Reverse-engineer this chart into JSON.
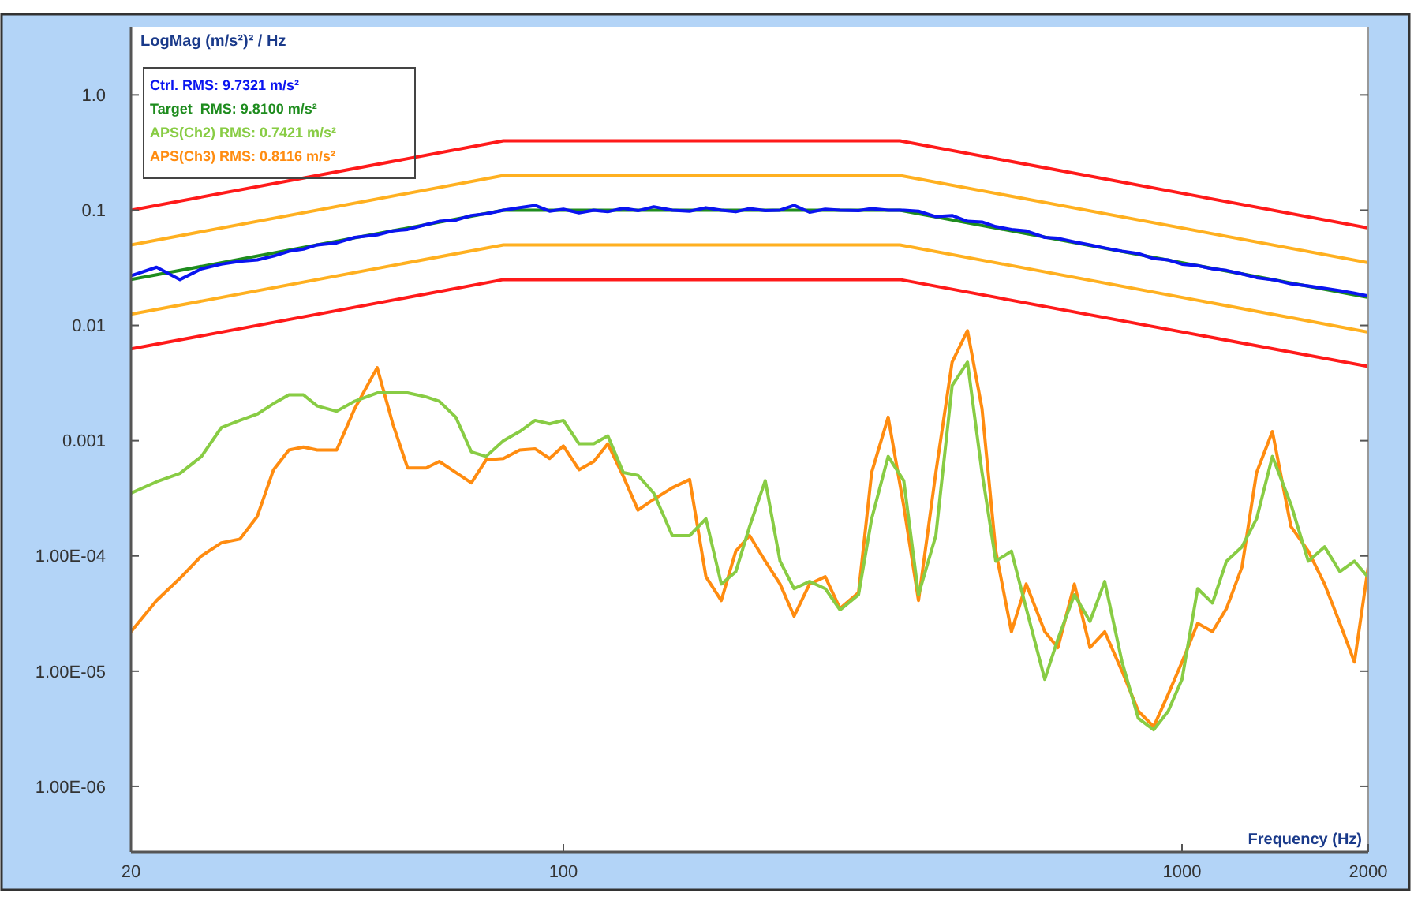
{
  "chart_data": {
    "type": "line",
    "ylabel": "LogMag (m/s²)² / Hz",
    "xlabel": "Frequency (Hz)",
    "log": "xy",
    "xlim": [
      20,
      2000
    ],
    "ylim": [
      2.7e-07,
      3.9
    ],
    "xticks": [
      20,
      100,
      1000,
      2000
    ],
    "yticks": [
      {
        "value": 1,
        "label": "1.0"
      },
      0.1,
      0.01,
      0.001,
      {
        "value": 0.0001,
        "label": "1.00E-04"
      },
      {
        "value": 1e-05,
        "label": "1.00E-05"
      },
      {
        "value": 1e-06,
        "label": "1.00E-06"
      }
    ],
    "grid": false,
    "legend": "top left",
    "marker": "none",
    "line_style": "solid",
    "x": [
      20,
      22,
      24,
      26,
      28,
      30,
      32,
      34,
      36,
      38,
      40,
      43,
      46,
      50,
      53,
      56,
      60,
      63,
      67,
      71,
      75,
      80,
      85,
      90,
      95,
      100,
      106,
      112,
      118,
      125,
      132,
      140,
      150,
      160,
      170,
      180,
      190,
      200,
      212,
      224,
      236,
      250,
      265,
      280,
      300,
      315,
      335,
      355,
      375,
      400,
      425,
      450,
      475,
      500,
      530,
      560,
      600,
      630,
      670,
      710,
      750,
      800,
      850,
      900,
      950,
      1000,
      1060,
      1120,
      1180,
      1250,
      1320,
      1400,
      1500,
      1600,
      1700,
      1800,
      1900,
      2000
    ],
    "series": [
      {
        "name": "Ctrl. RMS: 9.7321 m/s²",
        "color": "#0a14f0",
        "values": [
          0.027,
          0.032,
          0.025,
          0.031,
          0.034,
          0.036,
          0.037,
          0.04,
          0.044,
          0.046,
          0.05,
          0.052,
          0.058,
          0.061,
          0.066,
          0.068,
          0.075,
          0.08,
          0.082,
          0.09,
          0.093,
          0.1,
          0.105,
          0.11,
          0.098,
          0.102,
          0.095,
          0.1,
          0.097,
          0.104,
          0.099,
          0.107,
          0.1,
          0.098,
          0.105,
          0.1,
          0.097,
          0.103,
          0.099,
          0.1,
          0.11,
          0.096,
          0.102,
          0.1,
          0.099,
          0.103,
          0.1,
          0.1,
          0.098,
          0.088,
          0.09,
          0.08,
          0.079,
          0.072,
          0.068,
          0.066,
          0.058,
          0.057,
          0.053,
          0.05,
          0.047,
          0.044,
          0.042,
          0.038,
          0.037,
          0.034,
          0.033,
          0.031,
          0.03,
          0.028,
          0.026,
          0.025,
          0.023,
          0.022,
          0.021,
          0.02,
          0.019,
          0.018
        ]
      },
      {
        "name": "Target  RMS: 9.8100 m/s²",
        "x": [
          20,
          80,
          350,
          2000
        ],
        "color": "#1e8c1e",
        "values": [
          0.025,
          0.1,
          0.1,
          0.0175
        ]
      },
      {
        "x": [
          20,
          80,
          350,
          2000
        ],
        "color": "#ff1a1a",
        "values": [
          0.1,
          0.4,
          0.4,
          0.07
        ]
      },
      {
        "x": [
          20,
          80,
          350,
          2000
        ],
        "color": "#ffb020",
        "values": [
          0.05,
          0.2,
          0.2,
          0.035
        ]
      },
      {
        "x": [
          20,
          80,
          350,
          2000
        ],
        "color": "#ffb020",
        "values": [
          0.0125,
          0.05,
          0.05,
          0.00875
        ]
      },
      {
        "x": [
          20,
          80,
          350,
          2000
        ],
        "color": "#ff1a1a",
        "values": [
          0.00625,
          0.025,
          0.025,
          0.0044
        ]
      },
      {
        "name": "APS(Ch2) RMS: 0.7421 m/s²",
        "color": "#88cc44",
        "values": [
          0.00035,
          0.00044,
          0.00052,
          0.00073,
          0.0013,
          0.0015,
          0.0017,
          0.0021,
          0.0025,
          0.0025,
          0.002,
          0.0018,
          0.0022,
          0.0026,
          0.0026,
          0.0026,
          0.0024,
          0.0022,
          0.0016,
          0.0008,
          0.00073,
          0.001,
          0.0012,
          0.0015,
          0.0014,
          0.0015,
          0.00094,
          0.00094,
          0.0011,
          0.00053,
          0.0005,
          0.00035,
          0.00015,
          0.00015,
          0.00021,
          5.7e-05,
          7.3e-05,
          0.00018,
          0.00045,
          9e-05,
          5.2e-05,
          6e-05,
          5.2e-05,
          3.4e-05,
          4.6e-05,
          0.00021,
          0.00073,
          0.00045,
          4.6e-05,
          0.00015,
          0.003,
          0.0048,
          0.00053,
          9e-05,
          0.00011,
          3.5e-05,
          8.5e-06,
          1.9e-05,
          4.6e-05,
          2.7e-05,
          6e-05,
          1.2e-05,
          3.9e-06,
          3.1e-06,
          4.5e-06,
          8.5e-06,
          5.2e-05,
          3.9e-05,
          9e-05,
          0.00012,
          0.00021,
          0.00073,
          0.00028,
          9e-05,
          0.00012,
          7.3e-05,
          9e-05,
          6.5e-05
        ]
      },
      {
        "name": "APS(Ch3) RMS: 0.8116 m/s²",
        "color": "#ff8c10",
        "values": [
          2.2e-05,
          4.1e-05,
          6.4e-05,
          0.0001,
          0.00013,
          0.00014,
          0.00022,
          0.00056,
          0.00083,
          0.00088,
          0.00083,
          0.00083,
          0.0019,
          0.0043,
          0.0014,
          0.00058,
          0.00058,
          0.00066,
          0.00053,
          0.00043,
          0.00068,
          0.0007,
          0.00083,
          0.00085,
          0.0007,
          0.0009,
          0.00056,
          0.00066,
          0.00094,
          0.00049,
          0.00025,
          0.00031,
          0.00039,
          0.00046,
          6.6e-05,
          4.1e-05,
          0.00011,
          0.00015,
          9e-05,
          5.7e-05,
          3e-05,
          5.7e-05,
          6.6e-05,
          3.5e-05,
          4.8e-05,
          0.00053,
          0.0016,
          0.00027,
          4.1e-05,
          0.00053,
          0.0048,
          0.009,
          0.0019,
          0.00011,
          2.2e-05,
          5.7e-05,
          2.2e-05,
          1.6e-05,
          5.7e-05,
          1.6e-05,
          2.2e-05,
          1e-05,
          4.5e-06,
          3.3e-06,
          6.3e-06,
          1.2e-05,
          2.6e-05,
          2.2e-05,
          3.5e-05,
          8e-05,
          0.00053,
          0.0012,
          0.00018,
          0.00011,
          5.7e-05,
          2.6e-05,
          1.2e-05,
          8e-05
        ]
      }
    ]
  }
}
